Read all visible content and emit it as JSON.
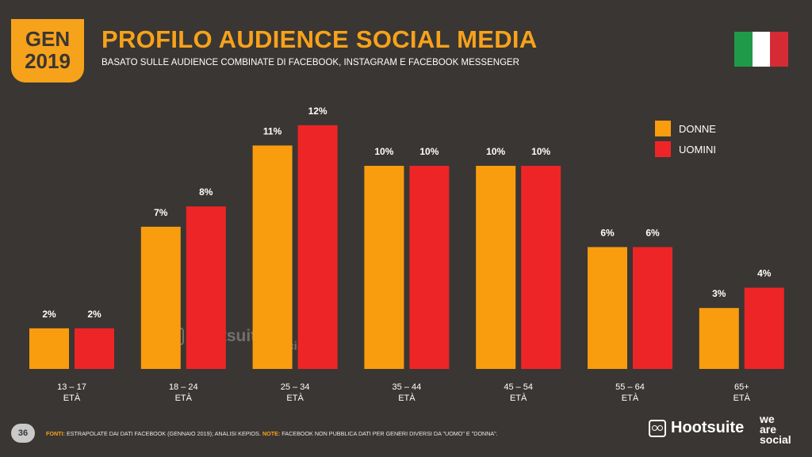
{
  "badge": {
    "month": "GEN",
    "year": "2019"
  },
  "header": {
    "title": "PROFILO AUDIENCE SOCIAL MEDIA",
    "subtitle": "BASATO SULLE AUDIENCE COMBINATE DI FACEBOOK, INSTAGRAM E FACEBOOK MESSENGER"
  },
  "flag": {
    "colors": [
      "#1f9a48",
      "#ffffff",
      "#d62b35"
    ]
  },
  "colors": {
    "donne": "#f99d0f",
    "uomini": "#ee2526",
    "accent": "#f7a21b",
    "background": "#3a3633"
  },
  "chart_data": {
    "type": "bar",
    "categories": [
      "13 – 17",
      "18 – 24",
      "25 – 34",
      "35 – 44",
      "45 – 54",
      "55 – 64",
      "65+"
    ],
    "category_sublabel": "ETÀ",
    "series": [
      {
        "name": "DONNE",
        "values": [
          2,
          7,
          11,
          10,
          10,
          6,
          3
        ],
        "labels": [
          "2%",
          "7%",
          "11%",
          "10%",
          "10%",
          "6%",
          "3%"
        ]
      },
      {
        "name": "UOMINI",
        "values": [
          2,
          8,
          12,
          10,
          10,
          6,
          4
        ],
        "labels": [
          "2%",
          "8%",
          "12%",
          "10%",
          "10%",
          "6%",
          "4%"
        ]
      }
    ],
    "title": "PROFILO AUDIENCE SOCIAL MEDIA",
    "legend_position": "top-right",
    "grid": false
  },
  "watermark": {
    "brand": "Hootsuite",
    "partner": [
      "we",
      "are",
      "social"
    ]
  },
  "footer": {
    "page_number": "36",
    "sources_label": "FONTI:",
    "sources_text": "ESTRAPOLATE DAI DATI FACEBOOK (GENNAIO 2019); ANALISI KEPIOS.",
    "note_label": "NOTE:",
    "note_text": "FACEBOOK NON PUBBLICA DATI PER GENERI DIVERSI DA \"UOMO\" E \"DONNA\".",
    "brand": "Hootsuite",
    "partner": [
      "we",
      "are",
      "social"
    ]
  }
}
